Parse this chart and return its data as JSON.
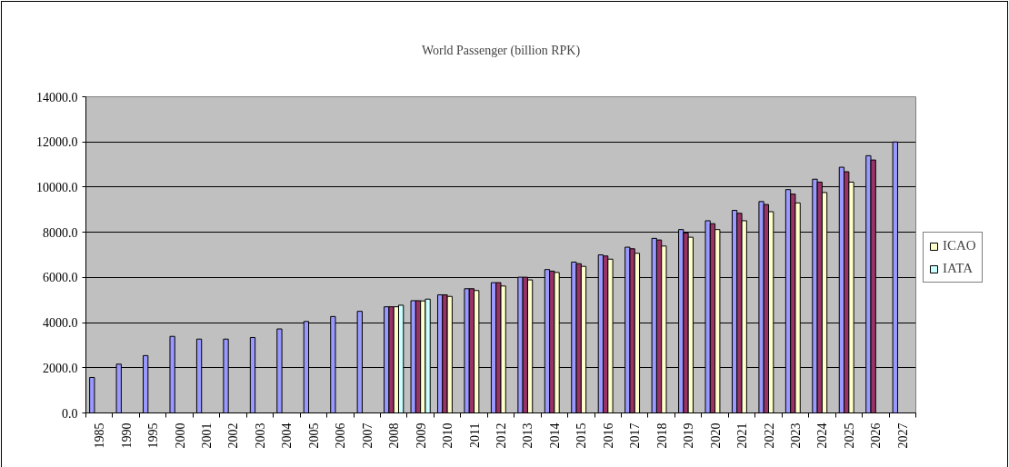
{
  "chart_data": {
    "type": "bar",
    "title": "World Passenger (billion RPK)",
    "categories": [
      "1985",
      "1990",
      "1995",
      "2000",
      "2001",
      "2002",
      "2003",
      "2004",
      "2005",
      "2006",
      "2007",
      "2008",
      "2009",
      "2010",
      "2011",
      "2012",
      "2013",
      "2014",
      "2015",
      "2016",
      "2017",
      "2018",
      "2019",
      "2020",
      "2021",
      "2022",
      "2023",
      "2024",
      "2025",
      "2026",
      "2027"
    ],
    "series": [
      {
        "color": "#9999ff",
        "values": [
          1570,
          2160,
          2540,
          3390,
          3270,
          3270,
          3340,
          3720,
          4050,
          4270,
          4500,
          4700,
          4970,
          5230,
          5500,
          5770,
          6010,
          6350,
          6680,
          7000,
          7340,
          7730,
          8120,
          8510,
          8970,
          9360,
          9890,
          10350,
          10880,
          11390,
          12000
        ]
      },
      {
        "color": "#993366",
        "values": [
          null,
          null,
          null,
          null,
          null,
          null,
          null,
          null,
          null,
          null,
          null,
          4700,
          4970,
          5230,
          5500,
          5770,
          6010,
          6280,
          6610,
          6950,
          7270,
          7660,
          7970,
          8380,
          8840,
          9230,
          9690,
          10220,
          10680,
          11200,
          null
        ]
      },
      {
        "name": "ICAO",
        "color": "#ffffcc",
        "values": [
          null,
          null,
          null,
          null,
          null,
          null,
          null,
          null,
          null,
          null,
          null,
          4700,
          4960,
          5160,
          5420,
          5620,
          5890,
          6220,
          6490,
          6810,
          7070,
          7390,
          7780,
          8120,
          8510,
          8910,
          9300,
          9760,
          10220,
          null,
          null
        ]
      },
      {
        "name": "IATA",
        "color": "#ccffff",
        "values": [
          null,
          null,
          null,
          null,
          null,
          null,
          null,
          null,
          null,
          null,
          null,
          4770,
          5040,
          null,
          null,
          null,
          null,
          null,
          null,
          null,
          null,
          null,
          null,
          null,
          null,
          null,
          null,
          null,
          null,
          null,
          null
        ]
      }
    ],
    "ylim": [
      0,
      14000
    ],
    "yticks": [
      {
        "value": 0,
        "label": "0.0"
      },
      {
        "value": 2000,
        "label": "2000.0"
      },
      {
        "value": 4000,
        "label": "4000.0"
      },
      {
        "value": 6000,
        "label": "6000.0"
      },
      {
        "value": 8000,
        "label": "8000.0"
      },
      {
        "value": 10000,
        "label": "10000.0"
      },
      {
        "value": 12000,
        "label": "12000.0"
      },
      {
        "value": 14000,
        "label": "14000.0"
      }
    ],
    "grid": "y",
    "legend": "right"
  }
}
